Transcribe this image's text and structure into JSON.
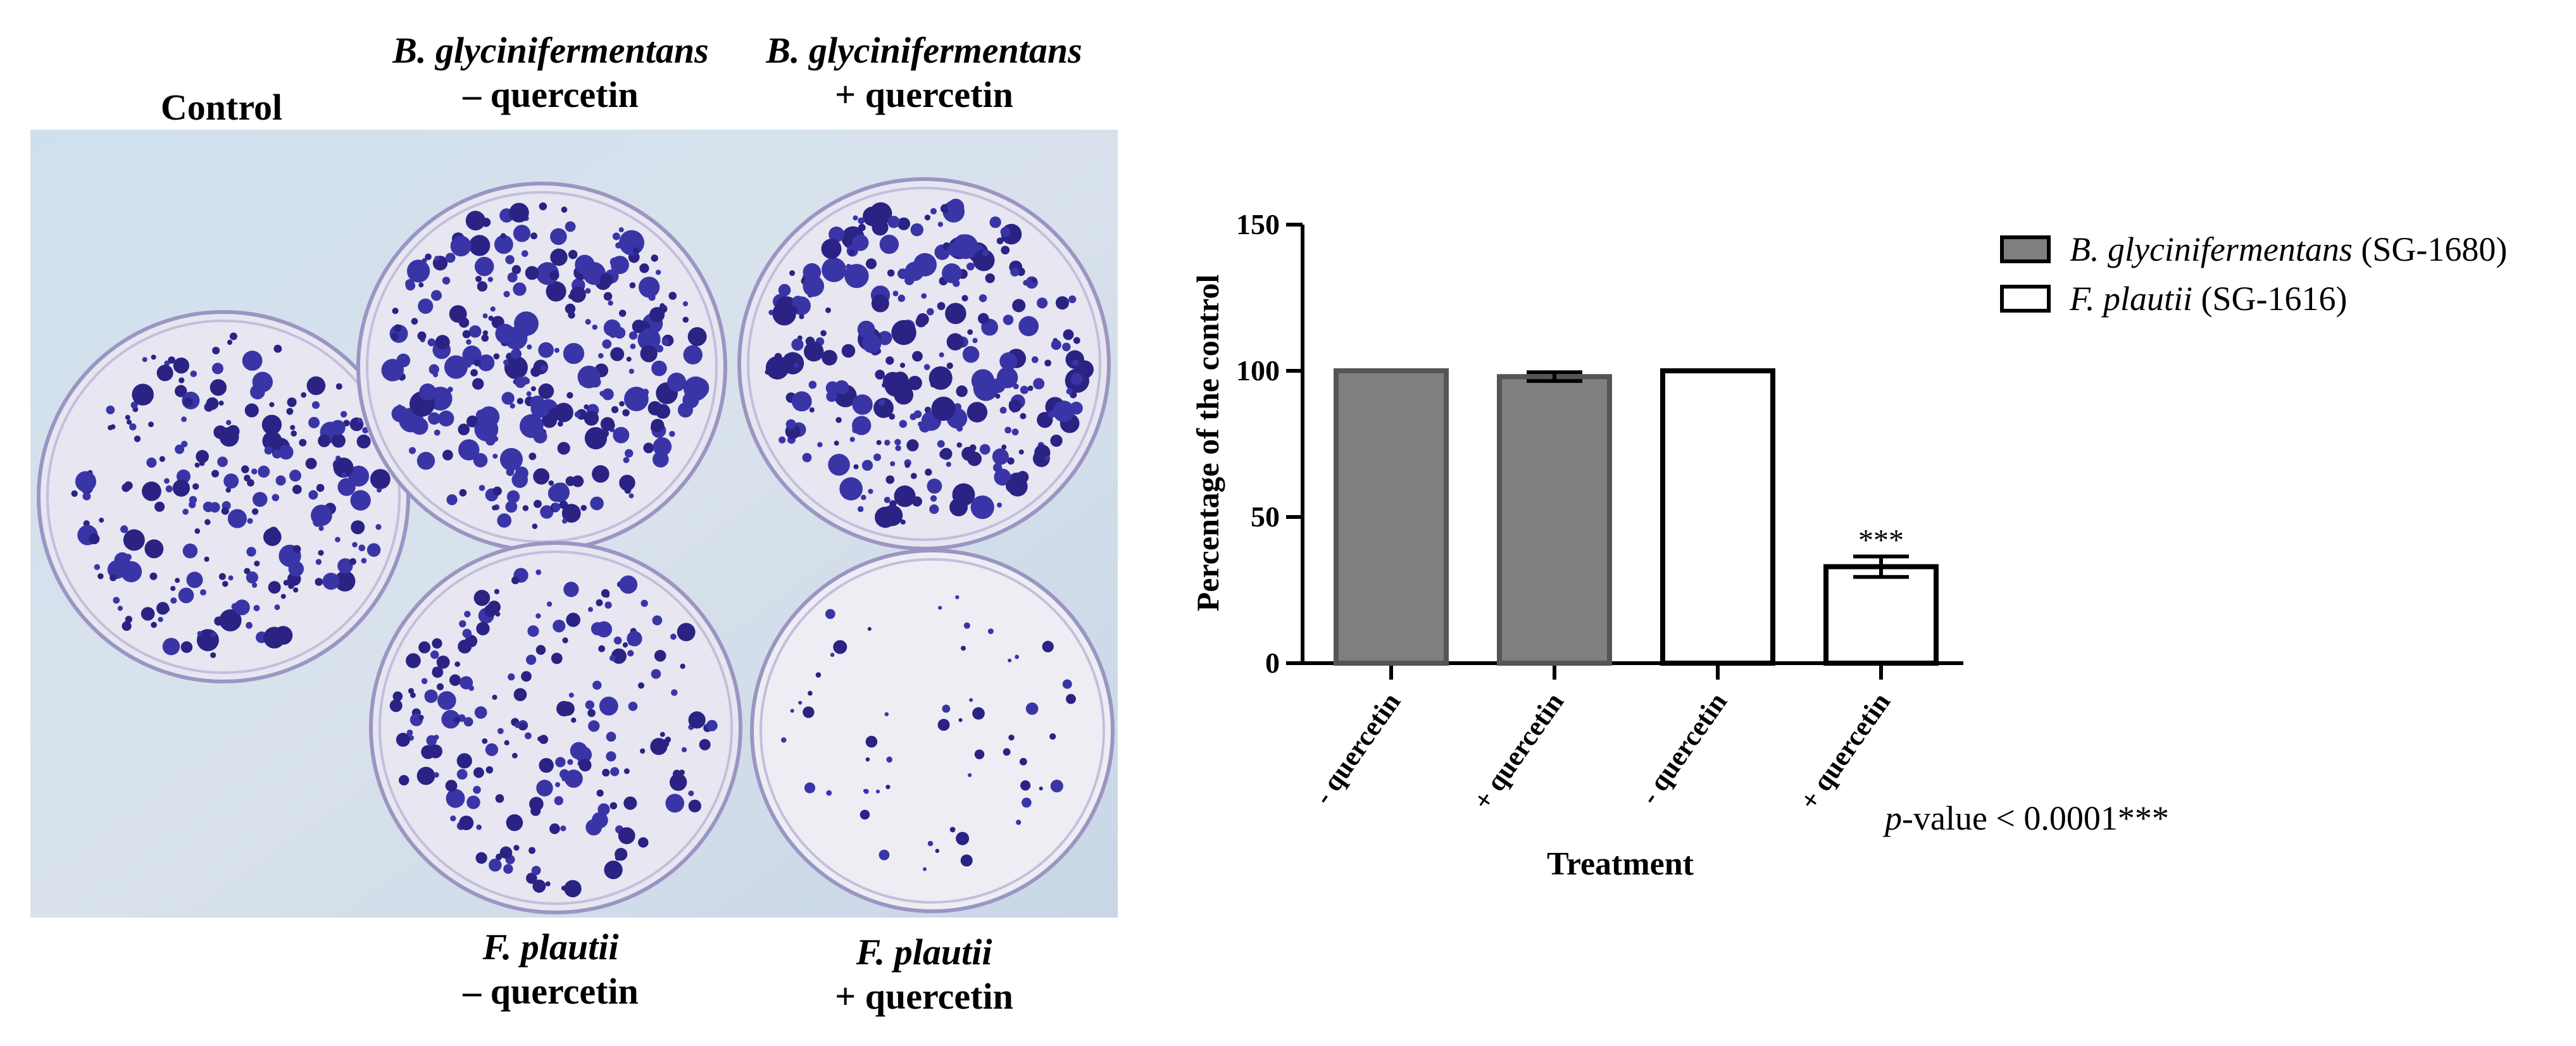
{
  "plates": {
    "control": {
      "label": "Control"
    },
    "bg_minus": {
      "organism": "B. glycinifermentans",
      "condition": "– quercetin"
    },
    "bg_plus": {
      "organism": "B. glycinifermentans",
      "condition": "+ quercetin"
    },
    "fp_minus": {
      "organism": "F. plautii",
      "condition": "– quercetin"
    },
    "fp_plus": {
      "organism": "F. plautii",
      "condition": "+ quercetin"
    }
  },
  "legend": [
    {
      "italic": "B. glycinifermentans",
      "rest": " (SG-1680)",
      "color": "#7f7f7f"
    },
    {
      "italic": "F. plautii",
      "rest": " (SG-1616)",
      "color": "#ffffff"
    }
  ],
  "pvalue": {
    "italic": "p",
    "rest": "-value < 0.0001***"
  },
  "chart_data": {
    "type": "bar",
    "categories": [
      "- quercetin",
      "+ quercetin",
      "- quercetin",
      "+ quercetin"
    ],
    "series": [
      {
        "name": "B. glycinifermentans (SG-1680)",
        "color": "#7f7f7f",
        "indices": [
          0,
          1
        ]
      },
      {
        "name": "F. plautii (SG-1616)",
        "color": "#ffffff",
        "indices": [
          2,
          3
        ]
      }
    ],
    "values": [
      100,
      98,
      100,
      33
    ],
    "errors": [
      0,
      1.5,
      0,
      3.5
    ],
    "significance": [
      "",
      "",
      "",
      "***"
    ],
    "xlabel": "Treatment",
    "ylabel": "Percentage of the control",
    "ylim": [
      0,
      150
    ],
    "yticks": [
      0,
      50,
      100,
      150
    ],
    "grid": false
  }
}
